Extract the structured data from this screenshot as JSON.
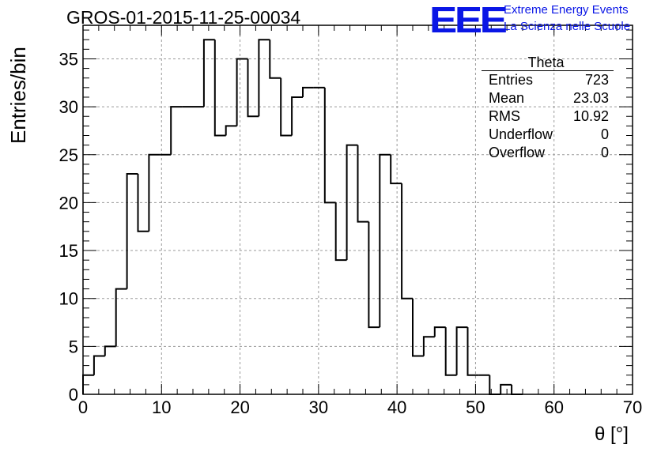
{
  "title": "GROS-01-2015-11-25-00034",
  "logo": {
    "mark": "EEE",
    "line1": "Extreme Energy Events",
    "line2": "La Scienza nelle Scuole",
    "color": "#0a16e6"
  },
  "stats_box": {
    "title": "Theta",
    "rows": [
      {
        "label": "Entries",
        "value": "723"
      },
      {
        "label": "Mean",
        "value": "23.03"
      },
      {
        "label": "RMS",
        "value": "10.92"
      },
      {
        "label": "Underflow",
        "value": "0"
      },
      {
        "label": "Overflow",
        "value": "0"
      }
    ]
  },
  "chart_data": {
    "type": "histogram",
    "title": "GROS-01-2015-11-25-00034",
    "xlabel": "θ [°]",
    "ylabel": "Entries/bin",
    "xlim": [
      0,
      70
    ],
    "ylim": [
      0,
      38.5
    ],
    "xticks": [
      0,
      10,
      20,
      30,
      40,
      50,
      60,
      70
    ],
    "yticks": [
      0,
      5,
      10,
      15,
      20,
      25,
      30,
      35
    ],
    "grid": true,
    "bin_width": 1.4,
    "values": [
      2,
      4,
      5,
      11,
      23,
      17,
      25,
      25,
      30,
      30,
      30,
      37,
      27,
      28,
      35,
      29,
      37,
      33,
      27,
      31,
      32,
      32,
      20,
      14,
      26,
      18,
      7,
      25,
      22,
      10,
      4,
      6,
      7,
      2,
      7,
      2,
      2,
      0,
      1,
      0,
      0,
      0,
      0,
      0,
      0,
      0,
      0,
      0,
      0,
      0
    ],
    "line_color": "#000000"
  }
}
